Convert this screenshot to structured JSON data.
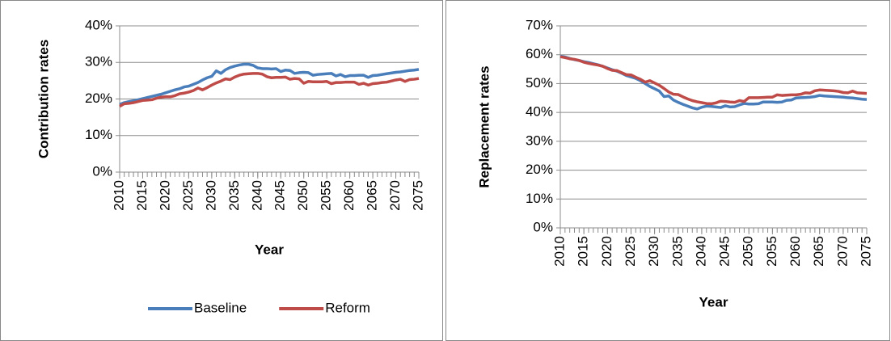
{
  "chart_data": [
    {
      "type": "line",
      "ylabel": "Contribution rates",
      "xlabel": "Year",
      "x": [
        2010,
        2011,
        2012,
        2013,
        2014,
        2015,
        2016,
        2017,
        2018,
        2019,
        2020,
        2021,
        2022,
        2023,
        2024,
        2025,
        2026,
        2027,
        2028,
        2029,
        2030,
        2031,
        2032,
        2033,
        2034,
        2035,
        2036,
        2037,
        2038,
        2039,
        2040,
        2041,
        2042,
        2043,
        2044,
        2045,
        2046,
        2047,
        2048,
        2049,
        2050,
        2051,
        2052,
        2053,
        2054,
        2055,
        2056,
        2057,
        2058,
        2059,
        2060,
        2061,
        2062,
        2063,
        2064,
        2065,
        2066,
        2067,
        2068,
        2069,
        2070,
        2071,
        2072,
        2073,
        2074,
        2075
      ],
      "xlim": [
        2010,
        2075
      ],
      "xticks": [
        2010,
        2015,
        2020,
        2025,
        2030,
        2035,
        2040,
        2045,
        2050,
        2055,
        2060,
        2065,
        2070,
        2075
      ],
      "ylim": [
        0,
        40
      ],
      "yticks": [
        {
          "value": 0,
          "label": "0%"
        },
        {
          "value": 10,
          "label": "10%"
        },
        {
          "value": 20,
          "label": "20%"
        },
        {
          "value": 30,
          "label": "30%"
        },
        {
          "value": 40,
          "label": "40%"
        }
      ],
      "grid": true,
      "legend": "bottom",
      "series": [
        {
          "name": "Baseline",
          "color": "#4a7ebb",
          "values": [
            18.5,
            19,
            19.3,
            19.5,
            19.8,
            20.1,
            20.4,
            20.7,
            21,
            21.3,
            21.7,
            22.1,
            22.5,
            22.8,
            23.3,
            23.5,
            24,
            24.5,
            25.2,
            25.8,
            26.2,
            27.7,
            27,
            28,
            28.6,
            29,
            29.3,
            29.5,
            29.5,
            29.2,
            28.5,
            28.3,
            28.3,
            28.2,
            28.3,
            27.5,
            27.9,
            27.8,
            27,
            27.2,
            27.3,
            27.2,
            26.5,
            26.7,
            26.8,
            26.9,
            27,
            26.3,
            26.7,
            26.1,
            26.4,
            26.4,
            26.5,
            26.5,
            25.9,
            26.4,
            26.5,
            26.7,
            26.9,
            27.1,
            27.3,
            27.4,
            27.6,
            27.8,
            27.9,
            28.1
          ]
        },
        {
          "name": "Reform",
          "color": "#be4b48",
          "values": [
            18,
            18.7,
            18.8,
            19,
            19.3,
            19.6,
            19.7,
            19.8,
            20.2,
            20.5,
            20.6,
            20.6,
            20.9,
            21.4,
            21.6,
            21.9,
            22.3,
            23,
            22.5,
            23.1,
            23.8,
            24.4,
            24.9,
            25.5,
            25.3,
            26,
            26.5,
            26.8,
            26.9,
            27,
            27,
            26.8,
            26.1,
            25.8,
            25.9,
            25.9,
            26,
            25.4,
            25.6,
            25.5,
            24.3,
            24.8,
            24.7,
            24.7,
            24.7,
            24.8,
            24.2,
            24.5,
            24.5,
            24.6,
            24.6,
            24.6,
            24,
            24.3,
            23.8,
            24.2,
            24.3,
            24.5,
            24.6,
            24.9,
            25.2,
            25.4,
            24.8,
            25.3,
            25.4,
            25.6
          ]
        }
      ]
    },
    {
      "type": "line",
      "ylabel": "Replacement rates",
      "xlabel": "Year",
      "x": [
        2010,
        2011,
        2012,
        2013,
        2014,
        2015,
        2016,
        2017,
        2018,
        2019,
        2020,
        2021,
        2022,
        2023,
        2024,
        2025,
        2026,
        2027,
        2028,
        2029,
        2030,
        2031,
        2032,
        2033,
        2034,
        2035,
        2036,
        2037,
        2038,
        2039,
        2040,
        2041,
        2042,
        2043,
        2044,
        2045,
        2046,
        2047,
        2048,
        2049,
        2050,
        2051,
        2052,
        2053,
        2054,
        2055,
        2056,
        2057,
        2058,
        2059,
        2060,
        2061,
        2062,
        2063,
        2064,
        2065,
        2066,
        2067,
        2068,
        2069,
        2070,
        2071,
        2072,
        2073,
        2074,
        2075
      ],
      "xlim": [
        2010,
        2075
      ],
      "xticks": [
        2010,
        2015,
        2020,
        2025,
        2030,
        2035,
        2040,
        2045,
        2050,
        2055,
        2060,
        2065,
        2070,
        2075
      ],
      "ylim": [
        0,
        70
      ],
      "yticks": [
        {
          "value": 0,
          "label": "0%"
        },
        {
          "value": 10,
          "label": "10%"
        },
        {
          "value": 20,
          "label": "20%"
        },
        {
          "value": 30,
          "label": "30%"
        },
        {
          "value": 40,
          "label": "40%"
        },
        {
          "value": 50,
          "label": "50%"
        },
        {
          "value": 60,
          "label": "60%"
        },
        {
          "value": 70,
          "label": "70%"
        }
      ],
      "grid": true,
      "legend": false,
      "series": [
        {
          "color": "#4a7ebb",
          "values": [
            59.5,
            59.2,
            58.7,
            58.3,
            58,
            57.6,
            57.3,
            56.9,
            56.5,
            56,
            55.4,
            54.8,
            54.3,
            53.6,
            52.8,
            52.3,
            51.8,
            51,
            50,
            49,
            48.2,
            47.4,
            45.5,
            45.7,
            44.3,
            43.5,
            42.8,
            42.2,
            41.6,
            41.2,
            41.8,
            42.2,
            42.1,
            41.9,
            41.7,
            42.3,
            41.9,
            42,
            42.6,
            43.1,
            42.9,
            42.9,
            43,
            43.6,
            43.6,
            43.6,
            43.5,
            43.6,
            44.2,
            44.3,
            45,
            45.1,
            45.2,
            45.3,
            45.5,
            45.9,
            45.7,
            45.6,
            45.5,
            45.4,
            45.3,
            45.1,
            45,
            44.8,
            44.6,
            44.5
          ]
        },
        {
          "color": "#be4b48",
          "values": [
            59.3,
            59,
            58.6,
            58.4,
            58,
            57.4,
            57,
            56.7,
            56.4,
            56,
            55.2,
            54.6,
            54.5,
            53.8,
            53.1,
            53,
            52.2,
            51.5,
            50.5,
            51,
            50.2,
            49.4,
            48.3,
            47.1,
            46.3,
            46.2,
            45.4,
            44.7,
            44.1,
            43.7,
            43.4,
            43.1,
            43,
            43.3,
            43.9,
            43.8,
            43.6,
            43.5,
            44.1,
            43.8,
            45.1,
            45.1,
            45.1,
            45.2,
            45.3,
            45.3,
            46.1,
            45.9,
            46,
            46.1,
            46.1,
            46.3,
            46.8,
            46.7,
            47.5,
            47.8,
            47.7,
            47.6,
            47.5,
            47.3,
            46.9,
            46.8,
            47.4,
            46.8,
            46.7,
            46.6
          ]
        }
      ]
    }
  ]
}
